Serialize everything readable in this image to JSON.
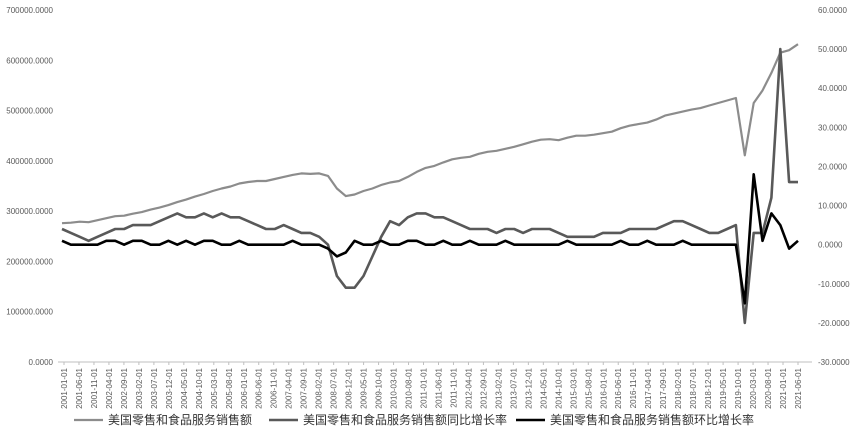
{
  "chart_data": {
    "type": "line",
    "x": [
      "2001-01",
      "2001-04",
      "2001-07",
      "2001-10",
      "2002-01",
      "2002-04",
      "2002-07",
      "2002-10",
      "2003-01",
      "2003-04",
      "2003-07",
      "2003-10",
      "2004-01",
      "2004-04",
      "2004-07",
      "2004-10",
      "2005-01",
      "2005-04",
      "2005-07",
      "2005-10",
      "2006-01",
      "2006-04",
      "2006-07",
      "2006-10",
      "2007-01",
      "2007-04",
      "2007-07",
      "2007-10",
      "2008-01",
      "2008-04",
      "2008-07",
      "2008-10",
      "2009-01",
      "2009-04",
      "2009-07",
      "2009-10",
      "2010-01",
      "2010-04",
      "2010-07",
      "2010-10",
      "2011-01",
      "2011-04",
      "2011-07",
      "2011-10",
      "2012-01",
      "2012-04",
      "2012-07",
      "2012-10",
      "2013-01",
      "2013-04",
      "2013-07",
      "2013-10",
      "2014-01",
      "2014-04",
      "2014-07",
      "2014-10",
      "2015-01",
      "2015-04",
      "2015-07",
      "2015-10",
      "2016-01",
      "2016-04",
      "2016-07",
      "2016-10",
      "2017-01",
      "2017-04",
      "2017-07",
      "2017-10",
      "2018-01",
      "2018-04",
      "2018-07",
      "2018-10",
      "2019-01",
      "2019-04",
      "2019-07",
      "2019-10",
      "2020-01",
      "2020-04",
      "2020-07",
      "2020-10",
      "2021-01",
      "2021-04",
      "2021-07",
      "2021-09"
    ],
    "x_tick_labels": [
      "2001-01-01",
      "2001-06-01",
      "2001-11-01",
      "2002-04-01",
      "2002-09-01",
      "2003-02-01",
      "2003-07-01",
      "2003-12-01",
      "2004-05-01",
      "2004-10-01",
      "2005-03-01",
      "2005-08-01",
      "2006-01-01",
      "2006-06-01",
      "2006-11-01",
      "2007-04-01",
      "2007-09-01",
      "2008-02-01",
      "2008-07-01",
      "2008-12-01",
      "2009-05-01",
      "2009-10-01",
      "2010-03-01",
      "2010-08-01",
      "2011-01-01",
      "2011-06-01",
      "2011-11-01",
      "2012-04-01",
      "2012-09-01",
      "2013-02-01",
      "2013-07-01",
      "2013-12-01",
      "2014-05-01",
      "2014-10-01",
      "2015-03-01",
      "2015-08-01",
      "2016-01-01",
      "2016-06-01",
      "2016-11-01",
      "2017-04-01",
      "2017-09-01",
      "2018-02-01",
      "2018-07-01",
      "2018-12-01",
      "2019-05-01",
      "2019-10-01",
      "2020-03-01",
      "2020-08-01",
      "2021-01-01",
      "2021-06-01"
    ],
    "left_axis": {
      "ylim": [
        0,
        700000
      ],
      "tick_labels": [
        "0.0000",
        "100000.0000",
        "200000.0000",
        "300000.0000",
        "400000.0000",
        "500000.0000",
        "600000.0000",
        "700000.0000"
      ]
    },
    "right_axis": {
      "ylim": [
        -30,
        60
      ],
      "tick_labels": [
        "-30.0000",
        "-20.0000",
        "-10.0000",
        "0.0000",
        "10.0000",
        "20.0000",
        "30.0000",
        "40.0000",
        "50.0000",
        "60.0000"
      ]
    },
    "series": [
      {
        "name": "美国零售和食品服务销售额",
        "axis": "left",
        "color": "#8c8c8c",
        "values": [
          276000,
          277000,
          279000,
          278000,
          282000,
          286000,
          290000,
          291000,
          295000,
          298000,
          303000,
          307000,
          312000,
          318000,
          323000,
          329000,
          334000,
          340000,
          345000,
          349000,
          355000,
          358000,
          360000,
          360000,
          364000,
          368000,
          372000,
          375000,
          374000,
          375000,
          370000,
          345000,
          330000,
          333000,
          340000,
          345000,
          352000,
          357000,
          360000,
          368000,
          378000,
          386000,
          390000,
          397000,
          403000,
          406000,
          408000,
          414000,
          418000,
          420000,
          424000,
          428000,
          433000,
          438000,
          442000,
          443000,
          441000,
          446000,
          450000,
          450000,
          452000,
          455000,
          458000,
          465000,
          470000,
          473000,
          476000,
          482000,
          490000,
          494000,
          498000,
          502000,
          505000,
          510000,
          515000,
          520000,
          525000,
          411000,
          515000,
          540000,
          575000,
          615000,
          620000,
          632000
        ]
      },
      {
        "name": "美国零售和食品服务销售额同比增长率",
        "axis": "right",
        "color": "#595959",
        "values": [
          4,
          3,
          2,
          1,
          2,
          3,
          4,
          4,
          5,
          5,
          5,
          6,
          7,
          8,
          7,
          7,
          8,
          7,
          8,
          7,
          7,
          6,
          5,
          4,
          4,
          5,
          4,
          3,
          3,
          2,
          0,
          -8,
          -11,
          -11,
          -8,
          -3,
          2,
          6,
          5,
          7,
          8,
          8,
          7,
          7,
          6,
          5,
          4,
          4,
          4,
          3,
          4,
          4,
          3,
          4,
          4,
          4,
          3,
          2,
          2,
          2,
          2,
          3,
          3,
          3,
          4,
          4,
          4,
          4,
          5,
          6,
          6,
          5,
          4,
          3,
          3,
          4,
          5,
          -20,
          3,
          3,
          12,
          50,
          16,
          16
        ]
      },
      {
        "name": "美国零售和食品服务销售额环比增长率",
        "axis": "right",
        "color": "#000000",
        "values": [
          1,
          0,
          0,
          0,
          0,
          1,
          1,
          0,
          1,
          1,
          0,
          0,
          1,
          0,
          1,
          0,
          1,
          1,
          0,
          0,
          1,
          0,
          0,
          0,
          0,
          0,
          1,
          0,
          0,
          0,
          -1,
          -3,
          -2,
          1,
          0,
          0,
          1,
          0,
          0,
          1,
          1,
          0,
          0,
          1,
          0,
          0,
          1,
          0,
          0,
          0,
          1,
          0,
          0,
          0,
          0,
          0,
          0,
          1,
          0,
          0,
          0,
          0,
          0,
          1,
          0,
          0,
          1,
          0,
          0,
          0,
          1,
          0,
          0,
          0,
          0,
          0,
          0,
          -15,
          18,
          1,
          8,
          5,
          -1,
          1
        ]
      }
    ],
    "legend": {
      "placement": "bottom",
      "items": [
        "美国零售和食品服务销售额",
        "美国零售和食品服务销售额同比增长率",
        "美国零售和食品服务销售额环比增长率"
      ]
    },
    "grid": true
  }
}
